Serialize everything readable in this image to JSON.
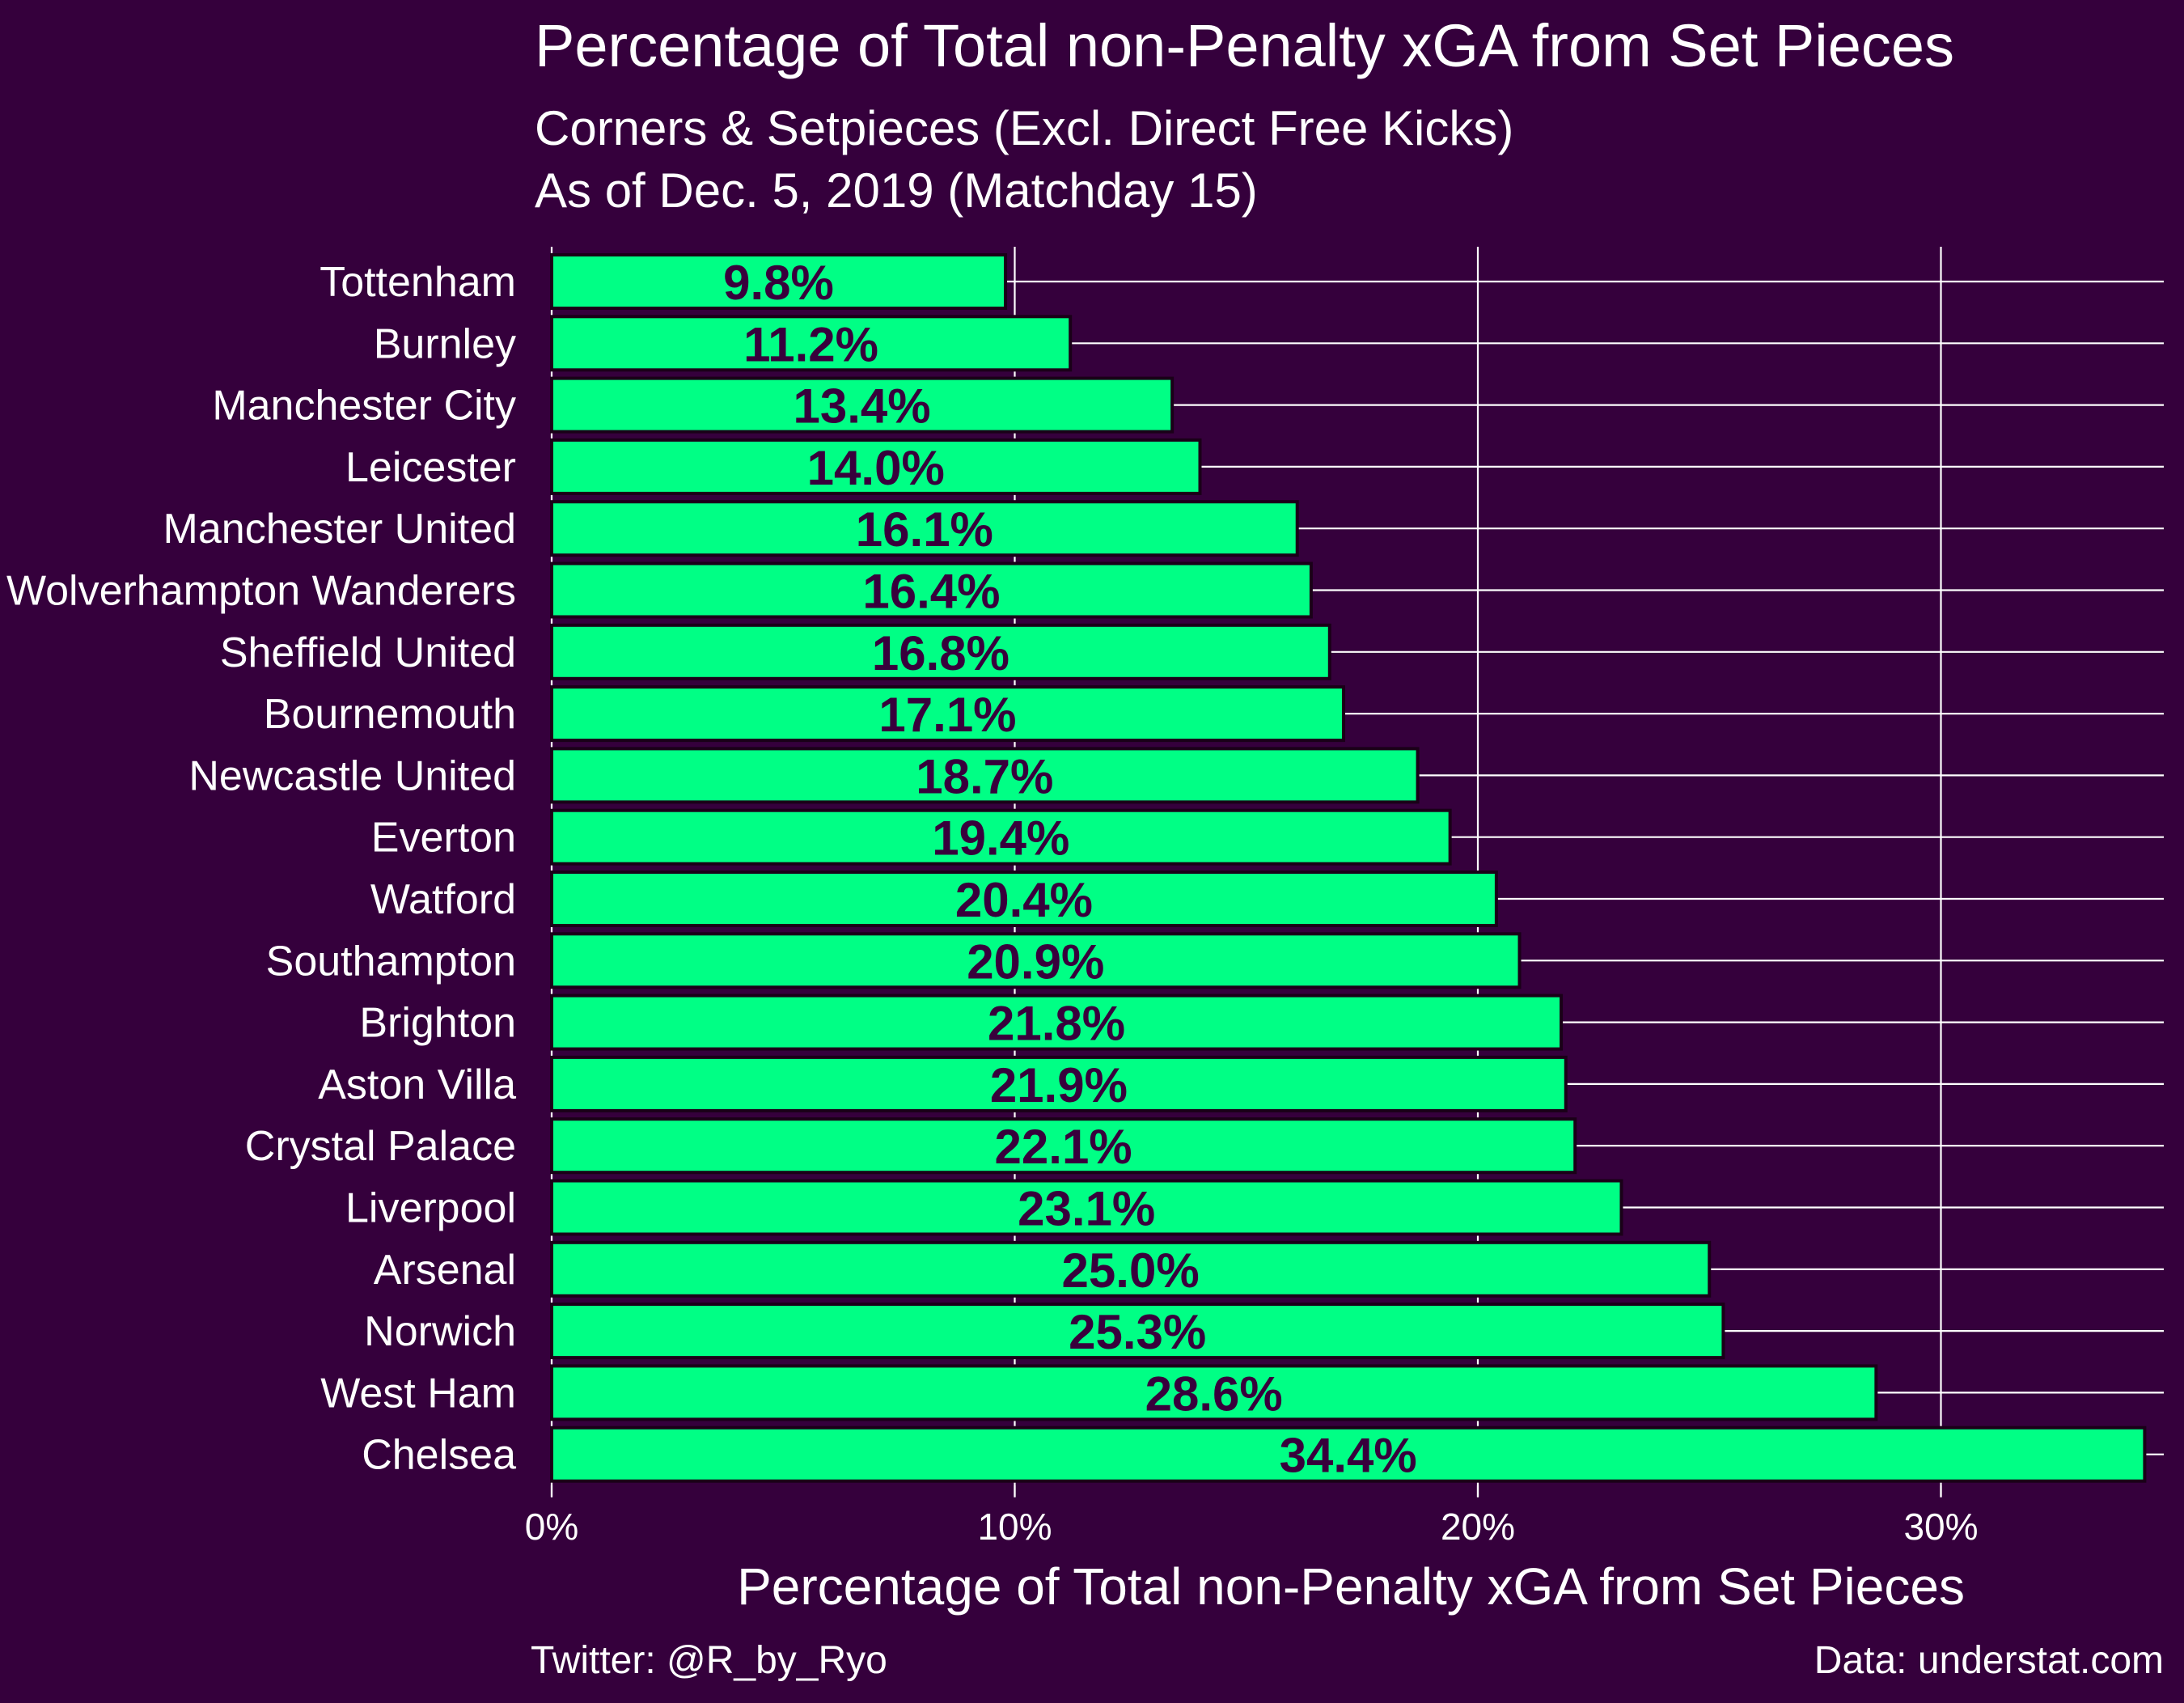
{
  "colors": {
    "background": "#35003c",
    "bar_fill": "#00ff85",
    "bar_stroke": "#1a0018",
    "bar_label": "#38003c",
    "text": "#ffffff",
    "grid": "#ffffff"
  },
  "chart_data": {
    "type": "bar",
    "orientation": "horizontal",
    "title": "Percentage of Total non-Penalty xGA from Set Pieces",
    "subtitle_lines": [
      "Corners & Setpieces (Excl. Direct Free Kicks)",
      "As of Dec. 5, 2019 (Matchday 15)"
    ],
    "xlabel": "Percentage of Total non-Penalty xGA from Set Pieces",
    "ylabel": "",
    "xlim": [
      0,
      35
    ],
    "x_ticks": [
      0,
      10,
      20,
      30
    ],
    "x_tick_labels": [
      "0%",
      "10%",
      "20%",
      "30%"
    ],
    "grid": true,
    "categories": [
      "Tottenham",
      "Burnley",
      "Manchester City",
      "Leicester",
      "Manchester United",
      "Wolverhampton Wanderers",
      "Sheffield United",
      "Bournemouth",
      "Newcastle United",
      "Everton",
      "Watford",
      "Southampton",
      "Brighton",
      "Aston Villa",
      "Crystal Palace",
      "Liverpool",
      "Arsenal",
      "Norwich",
      "West Ham",
      "Chelsea"
    ],
    "values": [
      9.8,
      11.2,
      13.4,
      14.0,
      16.1,
      16.4,
      16.8,
      17.1,
      18.7,
      19.4,
      20.4,
      20.9,
      21.8,
      21.9,
      22.1,
      23.1,
      25.0,
      25.3,
      28.6,
      34.4
    ],
    "data_labels": [
      "9.8%",
      "11.2%",
      "13.4%",
      "14.0%",
      "16.1%",
      "16.4%",
      "16.8%",
      "17.1%",
      "18.7%",
      "19.4%",
      "20.4%",
      "20.9%",
      "21.8%",
      "21.9%",
      "22.1%",
      "23.1%",
      "25.0%",
      "25.3%",
      "28.6%",
      "34.4%"
    ]
  },
  "caption": {
    "left": "Twitter: @R_by_Ryo",
    "right": "Data: understat.com"
  }
}
